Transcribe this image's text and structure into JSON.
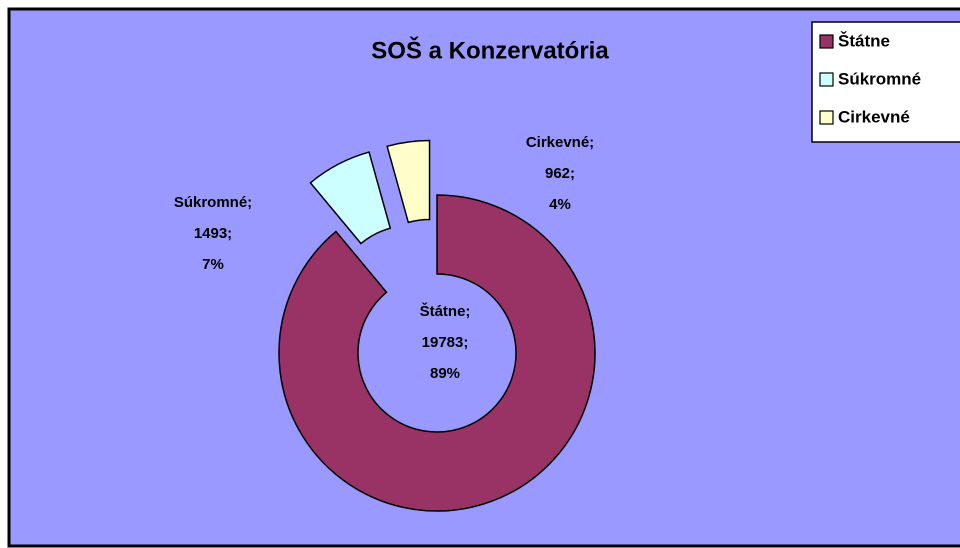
{
  "chart_data": {
    "type": "donut",
    "title": "SOŠ a Konzervatória",
    "categories": [
      "Štátne",
      "Súkromné",
      "Cirkevné"
    ],
    "values": [
      19783,
      1493,
      962
    ],
    "colors": [
      "#993366",
      "#ccffff",
      "#ffffcc"
    ],
    "exploded": [
      false,
      true,
      true
    ],
    "data_labels": [
      {
        "name": "Štátne;",
        "value": "19783;",
        "percent": "89%"
      },
      {
        "name": "Súkromné;",
        "value": "1493;",
        "percent": "7%"
      },
      {
        "name": "Cirkevné;",
        "value": "962;",
        "percent": "4%"
      }
    ],
    "legend": "top-right"
  }
}
